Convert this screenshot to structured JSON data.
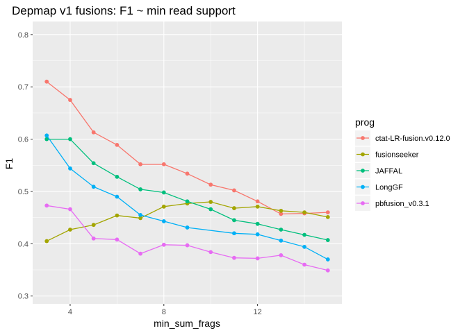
{
  "chart_data": {
    "type": "line",
    "title": "Depmap v1 fusions: F1 ~ min read support",
    "xlabel": "min_sum_frags",
    "ylabel": "F1",
    "xlim": [
      2.4,
      15.6
    ],
    "ylim": [
      0.285,
      0.825
    ],
    "x_ticks": [
      4,
      8,
      12
    ],
    "y_ticks": [
      0.3,
      0.4,
      0.5,
      0.6,
      0.7,
      0.8
    ],
    "grid": true,
    "legend_title": "prog",
    "legend_position": "right",
    "x": [
      3,
      4,
      5,
      6,
      7,
      8,
      9,
      10,
      11,
      12,
      13,
      14,
      15
    ],
    "series": [
      {
        "name": "ctat-LR-fusion.v0.12.0",
        "color": "#F8766D",
        "values": [
          0.71,
          0.675,
          0.613,
          0.589,
          0.552,
          0.552,
          0.534,
          0.513,
          0.502,
          0.481,
          0.457,
          0.458,
          0.46
        ]
      },
      {
        "name": "fusionseeker",
        "color": "#A3A500",
        "values": [
          0.405,
          0.427,
          0.436,
          0.454,
          0.449,
          0.471,
          0.477,
          0.48,
          0.468,
          0.471,
          0.463,
          0.46,
          0.451
        ]
      },
      {
        "name": "JAFFAL",
        "color": "#00BF7D",
        "values": [
          0.6,
          0.6,
          0.554,
          0.528,
          0.504,
          0.498,
          0.481,
          0.466,
          0.445,
          0.438,
          0.427,
          0.417,
          0.407
        ]
      },
      {
        "name": "LongGF",
        "color": "#00B0F6",
        "values": [
          0.607,
          0.544,
          0.509,
          0.49,
          0.455,
          0.443,
          0.431,
          null,
          0.42,
          0.418,
          0.406,
          0.394,
          0.37
        ]
      },
      {
        "name": "pbfusion_v0.3.1",
        "color": "#E76BF3",
        "values": [
          0.473,
          0.466,
          0.41,
          0.408,
          0.381,
          0.398,
          0.397,
          0.384,
          0.373,
          0.372,
          0.378,
          0.36,
          0.349
        ]
      }
    ]
  }
}
